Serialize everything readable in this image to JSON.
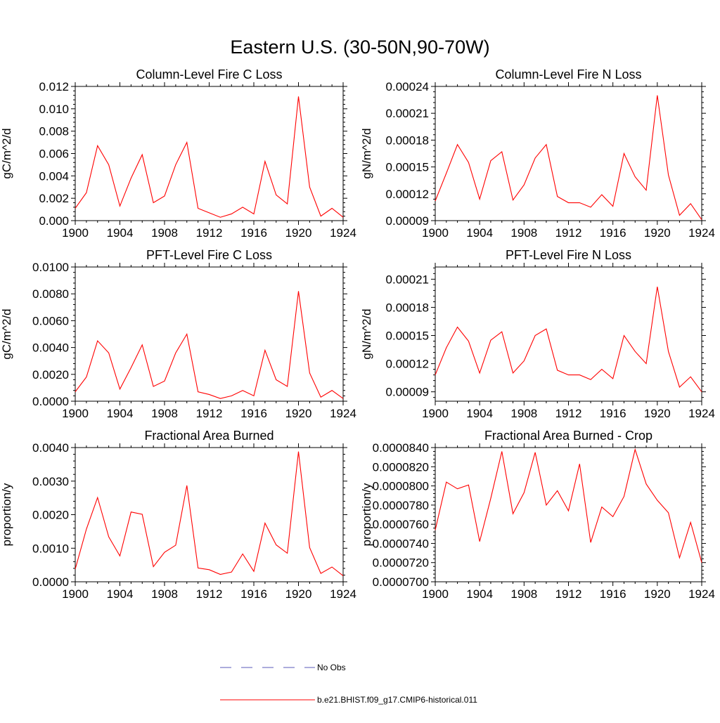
{
  "figure": {
    "title": "Eastern U.S. (30-50N,90-70W)"
  },
  "legend": {
    "entries": [
      {
        "label": "No Obs",
        "style": "dashed",
        "color": "#5a5ab8"
      },
      {
        "label": "b.e21.BHIST.f09_g17.CMIP6-historical.011",
        "style": "solid",
        "color": "#ff0000"
      }
    ]
  },
  "colors": {
    "series": "#ff0000",
    "axis": "#000000"
  },
  "chart_data": [
    {
      "type": "line",
      "title": "Column-Level Fire C Loss",
      "xlabel": "",
      "ylabel": "gC/m^2/d",
      "xlim": [
        1900,
        1924
      ],
      "ylim": [
        0,
        0.012
      ],
      "xticks": [
        "1900",
        "1904",
        "1908",
        "1912",
        "1916",
        "1920",
        "1924"
      ],
      "yticks": [
        "0.000",
        "0.002",
        "0.004",
        "0.006",
        "0.008",
        "0.010",
        "0.012"
      ],
      "x": [
        1900,
        1901,
        1902,
        1903,
        1904,
        1905,
        1906,
        1907,
        1908,
        1909,
        1910,
        1911,
        1912,
        1913,
        1914,
        1915,
        1916,
        1917,
        1918,
        1919,
        1920,
        1921,
        1922,
        1923,
        1924
      ],
      "series": [
        {
          "values": [
            0.0011,
            0.0025,
            0.0067,
            0.005,
            0.0013,
            0.0038,
            0.0059,
            0.0016,
            0.0022,
            0.005,
            0.007,
            0.0011,
            0.0007,
            0.0003,
            0.0006,
            0.0012,
            0.0006,
            0.0053,
            0.0023,
            0.0015,
            0.0111,
            0.003,
            0.0004,
            0.0011,
            0.0003
          ]
        }
      ]
    },
    {
      "type": "line",
      "title": "Column-Level Fire N Loss",
      "xlabel": "",
      "ylabel": "gN/m^2/d",
      "xlim": [
        1900,
        1924
      ],
      "ylim": [
        9e-05,
        0.00024
      ],
      "xticks": [
        "1900",
        "1904",
        "1908",
        "1912",
        "1916",
        "1920",
        "1924"
      ],
      "yticks": [
        "0.00009",
        "0.00012",
        "0.00015",
        "0.00018",
        "0.00021",
        "0.00024"
      ],
      "x": [
        1900,
        1901,
        1902,
        1903,
        1904,
        1905,
        1906,
        1907,
        1908,
        1909,
        1910,
        1911,
        1912,
        1913,
        1914,
        1915,
        1916,
        1917,
        1918,
        1919,
        1920,
        1921,
        1922,
        1923,
        1924
      ],
      "series": [
        {
          "values": [
            0.000112,
            0.000143,
            0.000175,
            0.000155,
            0.000114,
            0.000157,
            0.000167,
            0.000113,
            0.00013,
            0.00016,
            0.000175,
            0.000117,
            0.00011,
            0.00011,
            0.000105,
            0.000119,
            0.000106,
            0.000165,
            0.000139,
            0.000124,
            0.00023,
            0.000141,
            9.6e-05,
            0.000109,
            9.1e-05
          ]
        }
      ]
    },
    {
      "type": "line",
      "title": "PFT-Level Fire C Loss",
      "xlabel": "",
      "ylabel": "gC/m^2/d",
      "xlim": [
        1900,
        1924
      ],
      "ylim": [
        0,
        0.01
      ],
      "xticks": [
        "1900",
        "1904",
        "1908",
        "1912",
        "1916",
        "1920",
        "1924"
      ],
      "yticks": [
        "0.0000",
        "0.0020",
        "0.0040",
        "0.0060",
        "0.0080",
        "0.0100"
      ],
      "x": [
        1900,
        1901,
        1902,
        1903,
        1904,
        1905,
        1906,
        1907,
        1908,
        1909,
        1910,
        1911,
        1912,
        1913,
        1914,
        1915,
        1916,
        1917,
        1918,
        1919,
        1920,
        1921,
        1922,
        1923,
        1924
      ],
      "series": [
        {
          "values": [
            0.0007,
            0.0018,
            0.0045,
            0.0036,
            0.0009,
            0.0025,
            0.0042,
            0.0011,
            0.0015,
            0.0036,
            0.005,
            0.0007,
            0.0005,
            0.0002,
            0.0004,
            0.0008,
            0.0004,
            0.0038,
            0.0016,
            0.0011,
            0.0082,
            0.0021,
            0.0003,
            0.0008,
            0.0002
          ]
        }
      ]
    },
    {
      "type": "line",
      "title": "PFT-Level Fire N Loss",
      "xlabel": "",
      "ylabel": "gN/m^2/d",
      "xlim": [
        1900,
        1924
      ],
      "ylim": [
        8e-05,
        0.000223
      ],
      "xticks": [
        "1900",
        "1904",
        "1908",
        "1912",
        "1916",
        "1920",
        "1924"
      ],
      "yticks": [
        "0.00009",
        "0.00012",
        "0.00015",
        "0.00018",
        "0.00021"
      ],
      "x": [
        1900,
        1901,
        1902,
        1903,
        1904,
        1905,
        1906,
        1907,
        1908,
        1909,
        1910,
        1911,
        1912,
        1913,
        1914,
        1915,
        1916,
        1917,
        1918,
        1919,
        1920,
        1921,
        1922,
        1923,
        1924
      ],
      "series": [
        {
          "values": [
            0.000108,
            0.000137,
            0.000159,
            0.000144,
            0.00011,
            0.000145,
            0.000154,
            0.00011,
            0.000123,
            0.00015,
            0.000157,
            0.000113,
            0.000108,
            0.000108,
            0.000103,
            0.000114,
            0.000104,
            0.00015,
            0.000133,
            0.00012,
            0.000202,
            0.000133,
            9.5e-05,
            0.000106,
            9e-05
          ]
        }
      ]
    },
    {
      "type": "line",
      "title": "Fractional Area Burned",
      "xlabel": "",
      "ylabel": "proportion/y",
      "xlim": [
        1900,
        1924
      ],
      "ylim": [
        0,
        0.004
      ],
      "xticks": [
        "1900",
        "1904",
        "1908",
        "1912",
        "1916",
        "1920",
        "1924"
      ],
      "yticks": [
        "0.0000",
        "0.0010",
        "0.0020",
        "0.0030",
        "0.0040"
      ],
      "x": [
        1900,
        1901,
        1902,
        1903,
        1904,
        1905,
        1906,
        1907,
        1908,
        1909,
        1910,
        1911,
        1912,
        1913,
        1914,
        1915,
        1916,
        1917,
        1918,
        1919,
        1920,
        1921,
        1922,
        1923,
        1924
      ],
      "series": [
        {
          "values": [
            0.00038,
            0.00157,
            0.00251,
            0.00134,
            0.00077,
            0.00208,
            0.00201,
            0.00045,
            0.00088,
            0.00109,
            0.00287,
            0.00041,
            0.00036,
            0.00022,
            0.00029,
            0.00083,
            0.00031,
            0.00175,
            0.0011,
            0.00085,
            0.00388,
            0.00102,
            0.00025,
            0.00044,
            0.00018
          ]
        }
      ]
    },
    {
      "type": "line",
      "title": "Fractional Area Burned - Crop",
      "xlabel": "",
      "ylabel": "proportion/y",
      "xlim": [
        1900,
        1924
      ],
      "ylim": [
        7e-05,
        8.4e-05
      ],
      "xticks": [
        "1900",
        "1904",
        "1908",
        "1912",
        "1916",
        "1920",
        "1924"
      ],
      "yticks": [
        "0.0000700",
        "0.0000720",
        "0.0000740",
        "0.0000760",
        "0.0000780",
        "0.0000800",
        "0.0000820",
        "0.0000840"
      ],
      "x": [
        1900,
        1901,
        1902,
        1903,
        1904,
        1905,
        1906,
        1907,
        1908,
        1909,
        1910,
        1911,
        1912,
        1913,
        1914,
        1915,
        1916,
        1917,
        1918,
        1919,
        1920,
        1921,
        1922,
        1923,
        1924
      ],
      "series": [
        {
          "values": [
            7.54e-05,
            8.04e-05,
            7.97e-05,
            8.01e-05,
            7.42e-05,
            7.87e-05,
            8.36e-05,
            7.71e-05,
            7.93e-05,
            8.35e-05,
            7.8e-05,
            7.95e-05,
            7.74e-05,
            8.23e-05,
            7.41e-05,
            7.78e-05,
            7.68e-05,
            7.89e-05,
            8.38e-05,
            8.02e-05,
            7.85e-05,
            7.72e-05,
            7.25e-05,
            7.62e-05,
            7.2e-05
          ]
        }
      ]
    }
  ]
}
